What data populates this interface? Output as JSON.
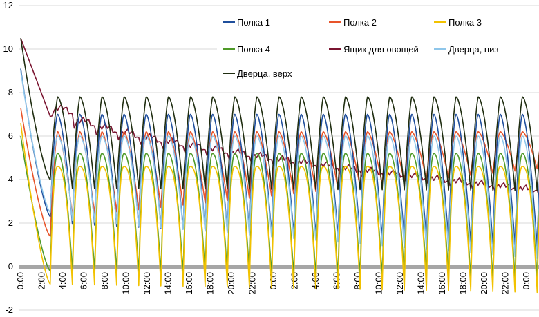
{
  "chart_data": {
    "type": "line",
    "title": "",
    "xlabel": "",
    "ylabel": "",
    "ylim": [
      -2,
      12
    ],
    "yticks": [
      -2,
      0,
      2,
      4,
      6,
      8,
      10,
      12
    ],
    "xlim": [
      0,
      50
    ],
    "x_tick_labels": [
      "0:00",
      "2:00",
      "4:00",
      "6:00",
      "8:00",
      "10:00",
      "12:00",
      "14:00",
      "16:00",
      "18:00",
      "20:00",
      "22:00",
      "0:00",
      "2:00",
      "4:00",
      "6:00",
      "8:00",
      "10:00",
      "12:00",
      "14:00",
      "16:00",
      "18:00",
      "20:00",
      "22:00",
      "0:00"
    ],
    "x_tick_hours": [
      0,
      2,
      4,
      6,
      8,
      10,
      12,
      14,
      16,
      18,
      20,
      22,
      24,
      26,
      28,
      30,
      32,
      34,
      36,
      38,
      40,
      42,
      44,
      46,
      48
    ],
    "grid": "horizontal",
    "legend_position": "top-right",
    "colors": {
      "polka1": "#1f4e9c",
      "polka2": "#e8542a",
      "polka3": "#f2c200",
      "polka4": "#4f9a28",
      "vegbox": "#7a1430",
      "door_low": "#8ec6ea",
      "door_top": "#1f2d10",
      "zero_band": "#a6a6a6",
      "grid": "#d9d9d9"
    },
    "series": [
      {
        "name": "Полка 1",
        "first_peak": 9.1,
        "first_trough": 2.3,
        "peak": 7.0,
        "trough_start": 2.0,
        "trough_end": 0.9
      },
      {
        "name": "Полка 2",
        "first_peak": 7.3,
        "first_trough": 1.4,
        "peak": 6.2,
        "trough_start": 2.2,
        "trough_end": 4.6
      },
      {
        "name": "Полка 3",
        "first_peak": 6.6,
        "first_trough": -0.8,
        "peak": 4.6,
        "trough_start": -0.8,
        "trough_end": -1.2
      },
      {
        "name": "Полка 4",
        "first_peak": 6.0,
        "first_trough": -0.2,
        "peak": 5.2,
        "trough_start": -0.2,
        "trough_end": -0.6
      },
      {
        "name": "Ящик для овощей",
        "start": 10.5,
        "drop_to": 6.9,
        "drop_hour": 2.8,
        "bump": 7.5,
        "end": 3.2
      },
      {
        "name": "Дверца, низ",
        "first_peak": 9.0,
        "first_trough": 2.5,
        "peak": 6.0,
        "trough_start": 2.2,
        "trough_end": 0.3
      },
      {
        "name": "Дверца, верх",
        "first_peak": 10.5,
        "first_trough": 4.0,
        "peak": 7.8,
        "trough_start": 3.6,
        "trough_end": 3.5
      }
    ],
    "cycle_hours": 2.1
  }
}
